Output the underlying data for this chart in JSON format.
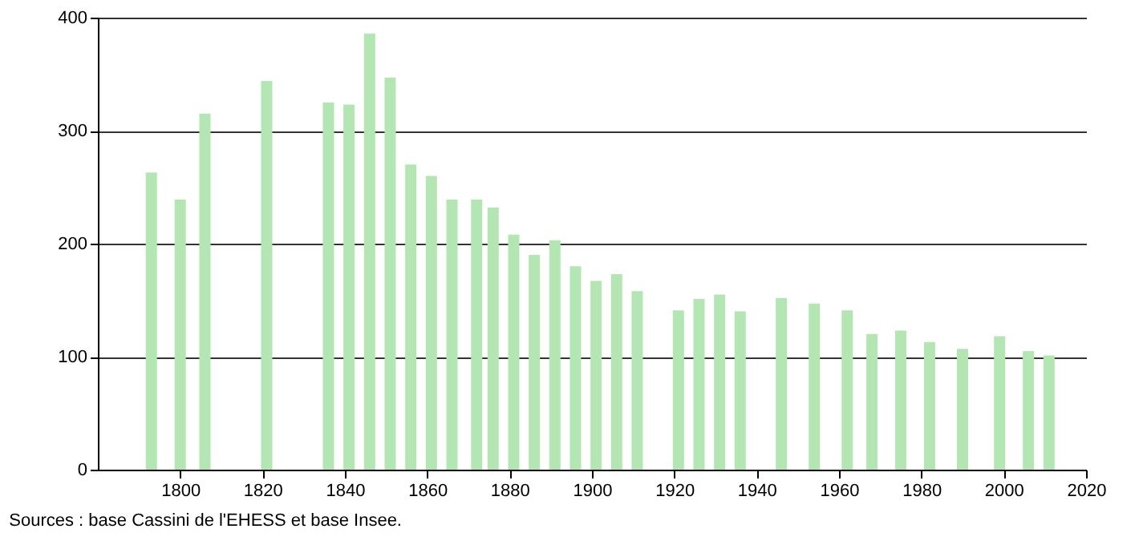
{
  "chart_data": {
    "type": "bar",
    "x": [
      1793,
      1800,
      1806,
      1821,
      1836,
      1841,
      1846,
      1851,
      1856,
      1861,
      1866,
      1872,
      1876,
      1881,
      1886,
      1891,
      1896,
      1901,
      1906,
      1911,
      1921,
      1926,
      1931,
      1936,
      1946,
      1954,
      1962,
      1968,
      1975,
      1982,
      1990,
      1999,
      2006,
      2011
    ],
    "series": [
      {
        "color": "#b3e6b3",
        "values": [
          263,
          239,
          315,
          344,
          325,
          323,
          386,
          347,
          270,
          260,
          239,
          239,
          232,
          208,
          190,
          203,
          180,
          167,
          173,
          158,
          141,
          151,
          155,
          140,
          152,
          147,
          141,
          120,
          123,
          113,
          107,
          118,
          105,
          101
        ]
      }
    ],
    "xlim": [
      1780,
      2020
    ],
    "xticks": [
      1800,
      1820,
      1840,
      1860,
      1880,
      1900,
      1920,
      1940,
      1960,
      1980,
      2000,
      2020
    ],
    "ylim": [
      0,
      400
    ],
    "yticks": [
      0,
      100,
      200,
      300,
      400
    ],
    "grid": "y",
    "annotations": [
      "Sources : base Cassini de l'EHESS et base Insee."
    ]
  }
}
